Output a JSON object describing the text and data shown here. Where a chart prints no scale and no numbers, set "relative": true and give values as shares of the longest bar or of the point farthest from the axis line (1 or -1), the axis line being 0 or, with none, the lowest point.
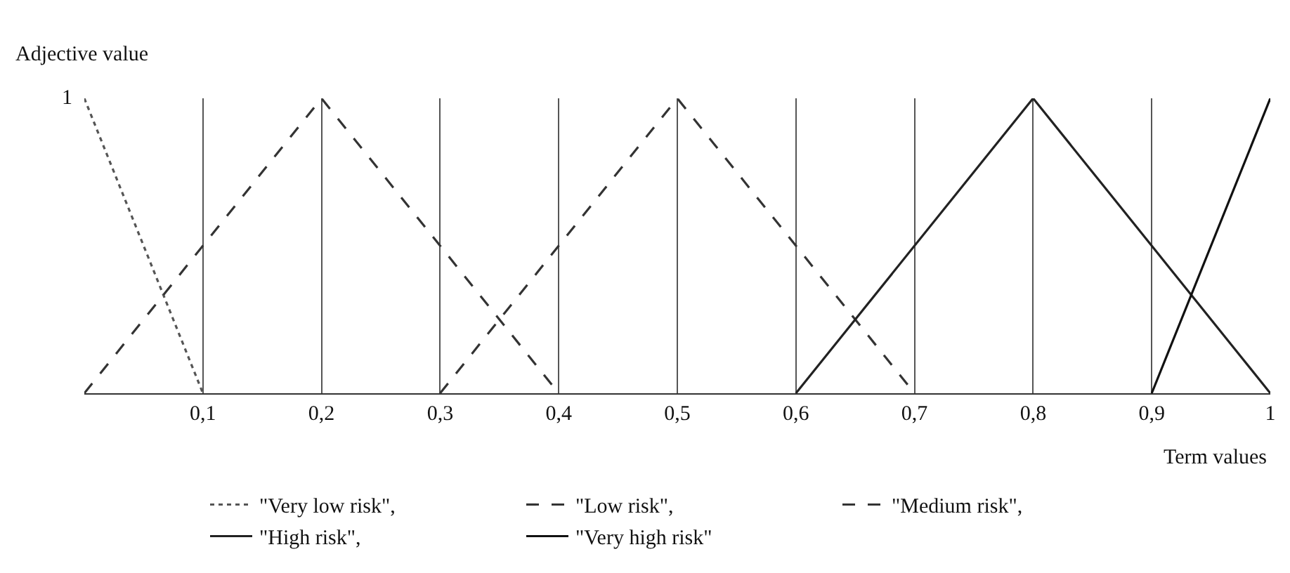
{
  "chart_data": {
    "type": "line",
    "ylabel": "Adjective value",
    "xlabel": "Term values",
    "xlim": [
      0,
      1
    ],
    "relative": true,
    "annotations": [
      {
        "text": "1",
        "x": 0,
        "y": 1
      }
    ],
    "xticks": [
      {
        "value": 0.1,
        "label": "0,1"
      },
      {
        "value": 0.2,
        "label": "0,2"
      },
      {
        "value": 0.3,
        "label": "0,3"
      },
      {
        "value": 0.4,
        "label": "0,4"
      },
      {
        "value": 0.5,
        "label": "0,5"
      },
      {
        "value": 0.6,
        "label": "0,6"
      },
      {
        "value": 0.7,
        "label": "0,7"
      },
      {
        "value": 0.8,
        "label": "0,8"
      },
      {
        "value": 0.9,
        "label": "0,9"
      },
      1
    ],
    "grid": "x",
    "legend": "bottom",
    "marker": "none",
    "series": [
      {
        "name": "\"Very low risk\",",
        "color": "#555555",
        "line_style": "dotted",
        "x": [
          0,
          0.1
        ],
        "values": [
          1,
          0
        ]
      },
      {
        "name": "\"Low risk\",",
        "color": "#333333",
        "line_style": "dashed",
        "x": [
          0,
          0.2,
          0.4
        ],
        "values": [
          0,
          1,
          0
        ]
      },
      {
        "name": "\"Medium risk\",",
        "color": "#333333",
        "line_style": "dashed",
        "x": [
          0.3,
          0.5,
          0.7
        ],
        "values": [
          0,
          1,
          0
        ]
      },
      {
        "name": "\"High risk\",",
        "color": "#222222",
        "line_style": "solid",
        "x": [
          0.6,
          0.8,
          1
        ],
        "values": [
          0,
          1,
          0
        ]
      },
      {
        "name": "\"Very high risk\"",
        "color": "#111111",
        "line_style": "solid",
        "x": [
          0.9,
          1
        ],
        "values": [
          0,
          1
        ]
      }
    ]
  }
}
